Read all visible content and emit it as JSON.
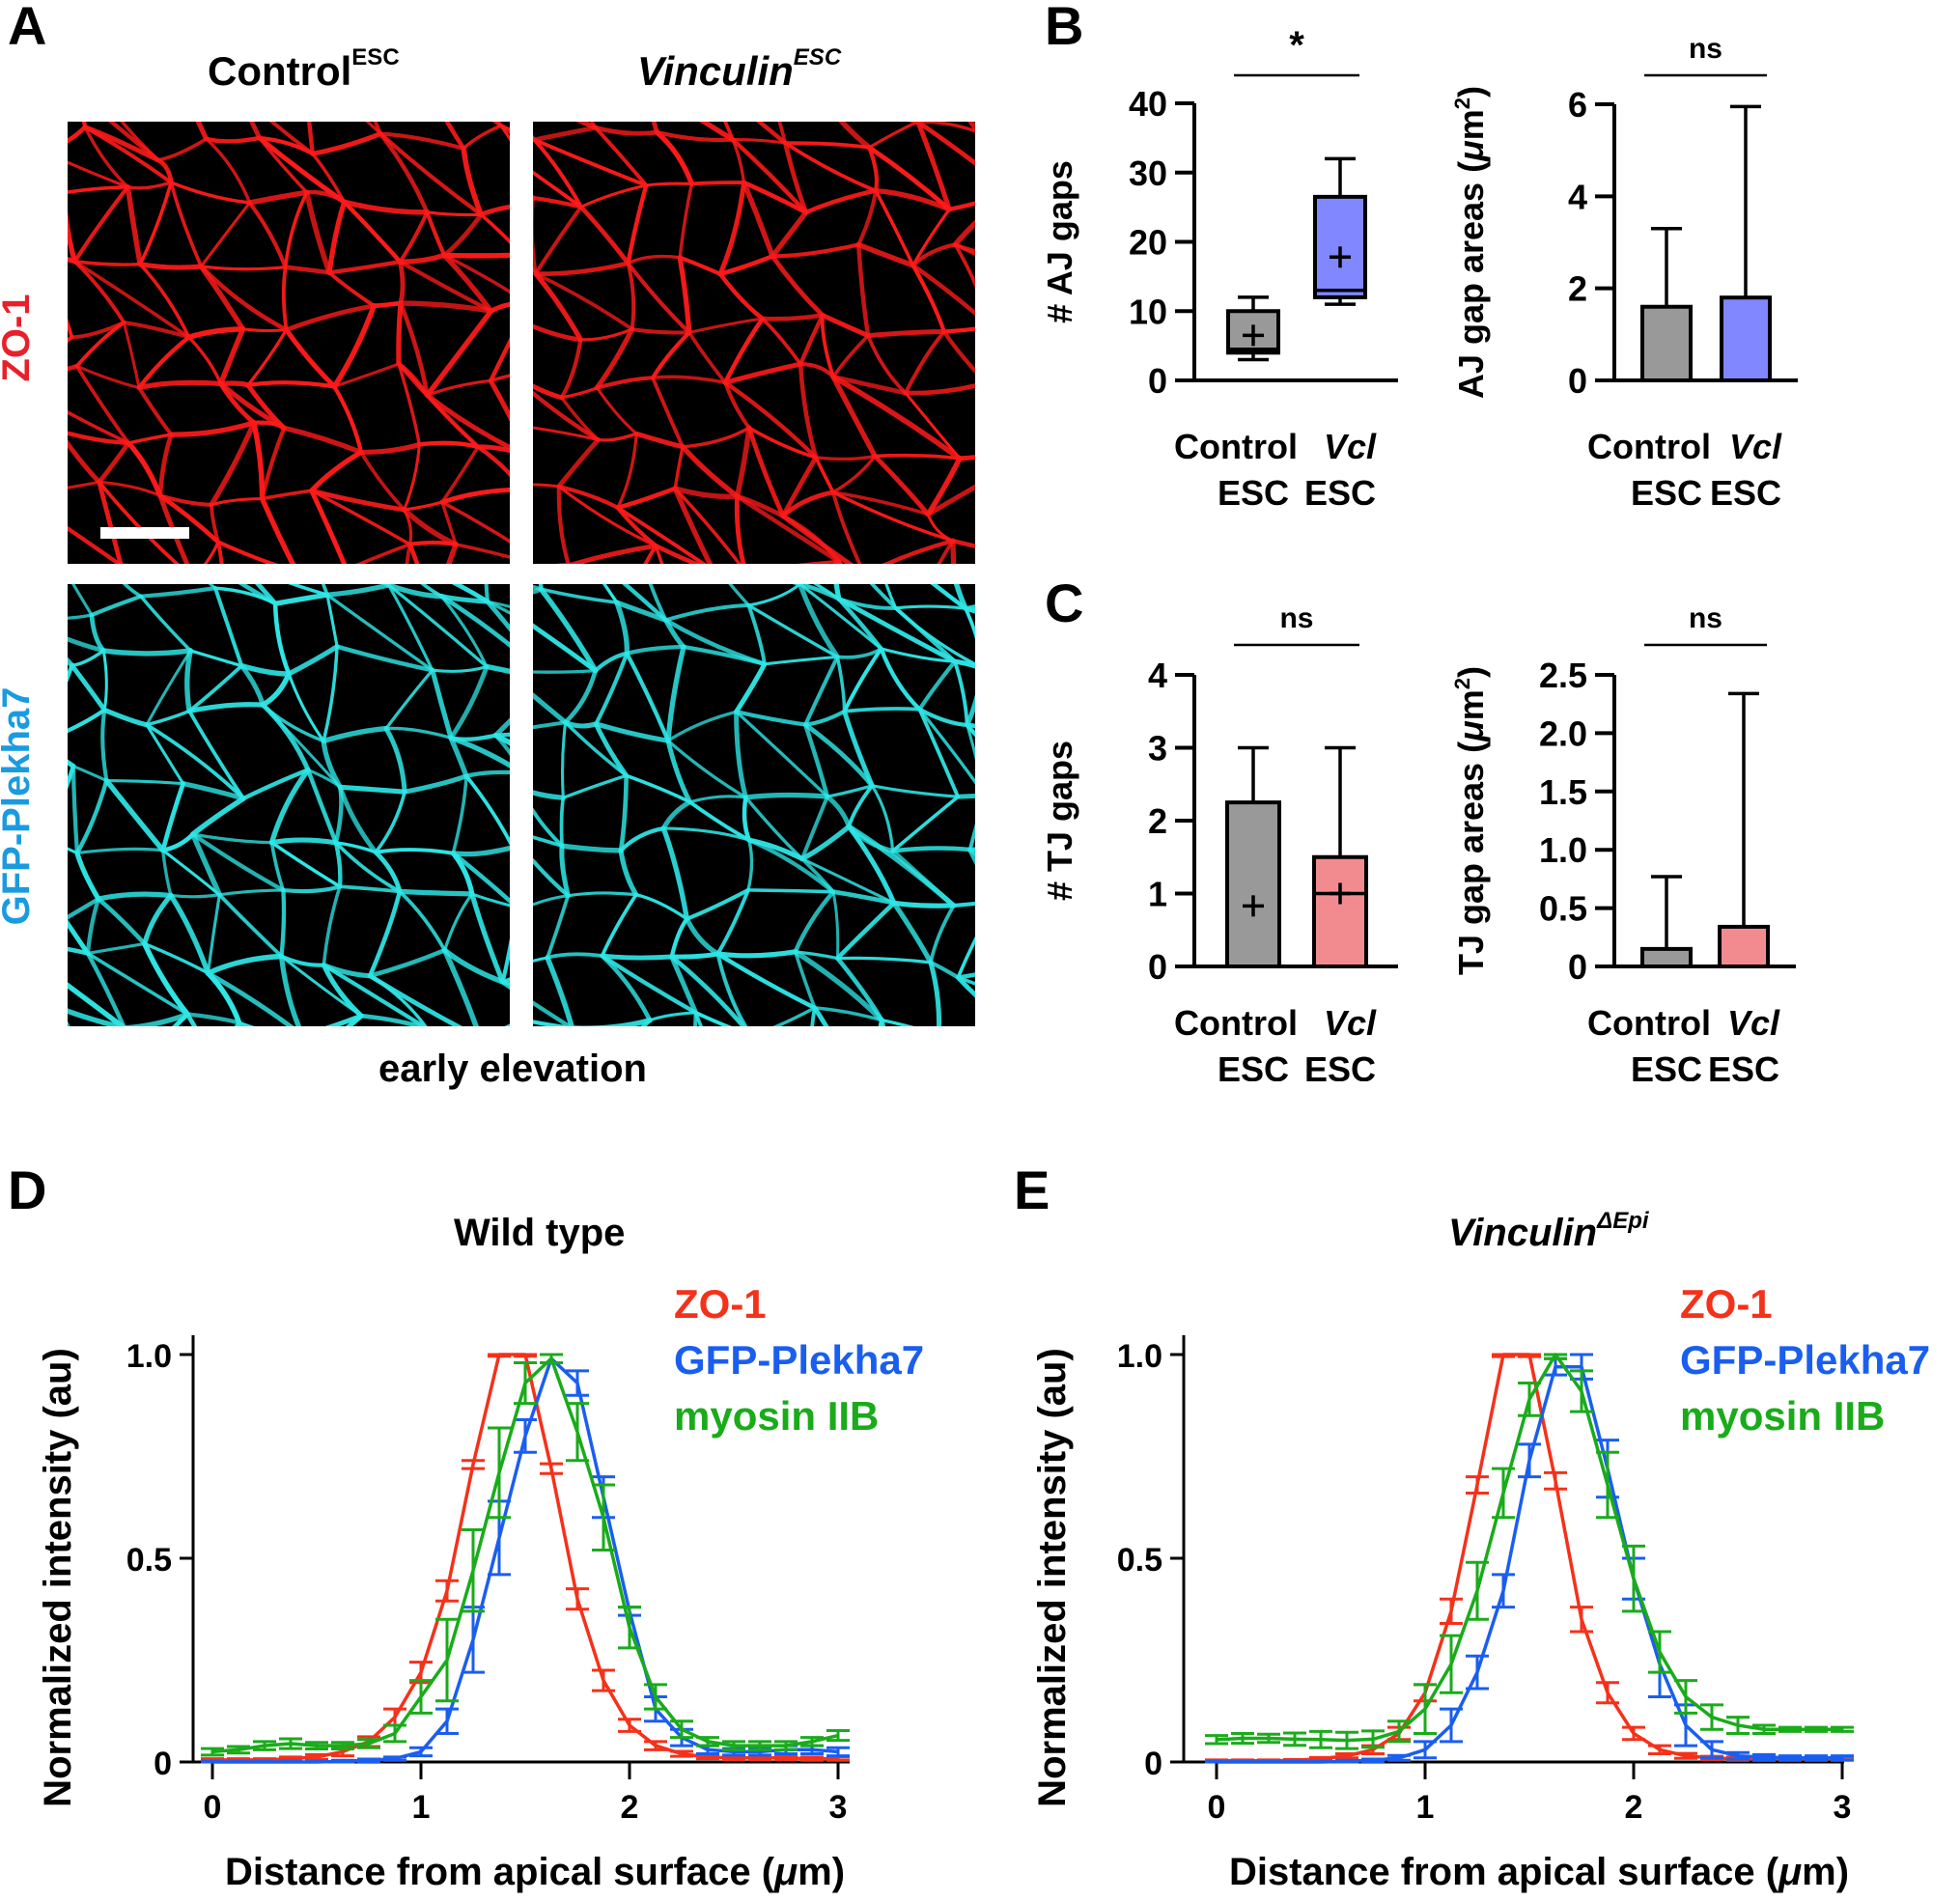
{
  "panels": {
    "A": {
      "letter": "A",
      "col_headings": [
        {
          "main": "Control",
          "sup": "ESC",
          "italic": false
        },
        {
          "main": "Vinculin",
          "sup": "ESC",
          "italic": true
        }
      ],
      "row_labels": [
        {
          "text": "ZO-1",
          "color": "#e8202a"
        },
        {
          "text": "GFP-Plekha7",
          "color": "#1a9be0"
        }
      ],
      "caption": "early elevation",
      "stain_colors": {
        "zo1": "#ff1a1a",
        "plekha7": "#2ee6e6"
      }
    },
    "B": {
      "letter": "B"
    },
    "C": {
      "letter": "C"
    },
    "D": {
      "letter": "D",
      "title": "Wild type"
    },
    "E": {
      "letter": "E",
      "title_main": "Vinculin",
      "title_sup": "ΔEpi"
    }
  },
  "chart_data": [
    {
      "id": "B-left",
      "type": "box",
      "ylabel": "# AJ gaps",
      "ylim": [
        0,
        40
      ],
      "yticks": [
        0,
        10,
        20,
        30,
        40
      ],
      "categories": [
        {
          "line1": "Control",
          "line2": "ESC",
          "italic": false
        },
        {
          "line1": "Vcl",
          "line2": "ESC",
          "italic": true
        }
      ],
      "significance": "*",
      "boxes": [
        {
          "name": "Control ESC",
          "color": "#999999",
          "min": 3,
          "q1": 4,
          "median": 4.5,
          "q3": 10,
          "max": 12,
          "mean": 6.5
        },
        {
          "name": "Vcl ESC",
          "color": "#8087ff",
          "min": 11,
          "q1": 12,
          "median": 13,
          "q3": 26.5,
          "max": 32,
          "mean": 17.8
        }
      ]
    },
    {
      "id": "B-right",
      "type": "bar",
      "ylabel": "AJ gap areas (μm²)",
      "ylim": [
        0,
        6
      ],
      "yticks": [
        0,
        2,
        4,
        6
      ],
      "categories": [
        {
          "line1": "Control",
          "line2": "ESC",
          "italic": false
        },
        {
          "line1": "Vcl",
          "line2": "ESC",
          "italic": true
        }
      ],
      "significance": "ns",
      "bars": [
        {
          "name": "Control ESC",
          "color": "#999999",
          "value": 1.6,
          "error_upper": 3.3
        },
        {
          "name": "Vcl ESC",
          "color": "#8087ff",
          "value": 1.8,
          "error_upper": 5.95
        }
      ]
    },
    {
      "id": "C-left",
      "type": "box",
      "ylabel": "# TJ gaps",
      "ylim": [
        0,
        4
      ],
      "yticks": [
        0,
        1,
        2,
        3,
        4
      ],
      "categories": [
        {
          "line1": "Control",
          "line2": "ESC",
          "italic": false
        },
        {
          "line1": "Vcl",
          "line2": "ESC",
          "italic": true
        }
      ],
      "significance": "ns",
      "boxes": [
        {
          "name": "Control ESC",
          "color": "#999999",
          "min": 0,
          "q1": 0,
          "median": 0,
          "q3": 2.25,
          "max": 3,
          "mean": 0.83
        },
        {
          "name": "Vcl ESC",
          "color": "#f28b8f",
          "min": 0,
          "q1": 0,
          "median": 1,
          "q3": 1.5,
          "max": 3,
          "mean": 1.0
        }
      ]
    },
    {
      "id": "C-right",
      "type": "bar",
      "ylabel": "TJ gap areas (μm²)",
      "ylim": [
        0,
        2.5
      ],
      "yticks": [
        "0",
        "0.5",
        "1.0",
        "1.5",
        "2.0",
        "2.5"
      ],
      "categories": [
        {
          "line1": "Control",
          "line2": "ESC",
          "italic": false
        },
        {
          "line1": "Vcl",
          "line2": "ESC",
          "italic": true
        }
      ],
      "significance": "ns",
      "bars": [
        {
          "name": "Control ESC",
          "color": "#999999",
          "value": 0.15,
          "error_upper": 0.77
        },
        {
          "name": "Vcl ESC",
          "color": "#f28b8f",
          "value": 0.34,
          "error_upper": 2.34
        }
      ]
    },
    {
      "id": "D",
      "type": "line",
      "title": "Wild type",
      "xlabel": "Distance from apical surface (μm)",
      "ylabel": "Normalized intensity (au)",
      "xlim": [
        0,
        3
      ],
      "ylim": [
        0,
        1
      ],
      "xticks": [
        "0",
        "1",
        "2",
        "3"
      ],
      "yticks": [
        "0",
        "0.5",
        "1.0"
      ],
      "legend": "top-right",
      "x": [
        0,
        0.125,
        0.25,
        0.375,
        0.5,
        0.625,
        0.75,
        0.875,
        1.0,
        1.125,
        1.25,
        1.375,
        1.5,
        1.625,
        1.75,
        1.875,
        2.0,
        2.125,
        2.25,
        2.375,
        2.5,
        2.625,
        2.75,
        2.875,
        3.0
      ],
      "series": [
        {
          "name": "ZO-1",
          "color": "#f5311a",
          "values": [
            0.005,
            0.005,
            0.005,
            0.008,
            0.012,
            0.025,
            0.05,
            0.11,
            0.22,
            0.42,
            0.73,
            1.0,
            1.0,
            0.72,
            0.4,
            0.2,
            0.09,
            0.04,
            0.02,
            0.012,
            0.01,
            0.01,
            0.01,
            0.008,
            0.008
          ],
          "err": [
            0.003,
            0.003,
            0.003,
            0.004,
            0.006,
            0.01,
            0.012,
            0.02,
            0.025,
            0.025,
            0.01,
            0.004,
            0.004,
            0.012,
            0.025,
            0.025,
            0.015,
            0.01,
            0.006,
            0.004,
            0.004,
            0.004,
            0.004,
            0.004,
            0.004
          ]
        },
        {
          "name": "GFP-Plekha7",
          "color": "#1a5ef0",
          "values": [
            0.0,
            0.0,
            0.0,
            0.0,
            0.0,
            0.002,
            0.004,
            0.008,
            0.025,
            0.1,
            0.3,
            0.55,
            0.8,
            0.99,
            0.93,
            0.65,
            0.37,
            0.13,
            0.06,
            0.03,
            0.025,
            0.025,
            0.03,
            0.03,
            0.025
          ],
          "err": [
            0.002,
            0.002,
            0.002,
            0.002,
            0.002,
            0.002,
            0.003,
            0.004,
            0.01,
            0.03,
            0.08,
            0.09,
            0.04,
            0.01,
            0.03,
            0.05,
            0.01,
            0.03,
            0.02,
            0.01,
            0.008,
            0.008,
            0.01,
            0.01,
            0.01
          ]
        },
        {
          "name": "myosin IIB",
          "color": "#1aab1a",
          "values": [
            0.025,
            0.03,
            0.04,
            0.045,
            0.04,
            0.04,
            0.045,
            0.07,
            0.16,
            0.25,
            0.47,
            0.71,
            0.93,
            0.99,
            0.81,
            0.6,
            0.33,
            0.16,
            0.08,
            0.05,
            0.04,
            0.04,
            0.04,
            0.05,
            0.065
          ],
          "err": [
            0.008,
            0.008,
            0.01,
            0.012,
            0.008,
            0.008,
            0.01,
            0.02,
            0.04,
            0.1,
            0.1,
            0.11,
            0.05,
            0.01,
            0.07,
            0.08,
            0.05,
            0.03,
            0.02,
            0.01,
            0.01,
            0.01,
            0.01,
            0.01,
            0.012
          ]
        }
      ]
    },
    {
      "id": "E",
      "type": "line",
      "title": "Vinculin ΔEpi",
      "xlabel": "Distance from apical surface (μm)",
      "ylabel": "Normalized intensity (au)",
      "xlim": [
        0,
        3
      ],
      "ylim": [
        0,
        1
      ],
      "xticks": [
        "0",
        "1",
        "2",
        "3"
      ],
      "yticks": [
        "0",
        "0.5",
        "1.0"
      ],
      "legend": "top-right",
      "x": [
        0,
        0.125,
        0.25,
        0.375,
        0.5,
        0.625,
        0.75,
        0.875,
        1.0,
        1.125,
        1.25,
        1.375,
        1.5,
        1.625,
        1.75,
        1.875,
        2.0,
        2.125,
        2.25,
        2.375,
        2.5,
        2.625,
        2.75,
        2.875,
        3.0
      ],
      "series": [
        {
          "name": "ZO-1",
          "color": "#f5311a",
          "values": [
            0.003,
            0.003,
            0.003,
            0.004,
            0.008,
            0.015,
            0.03,
            0.07,
            0.17,
            0.37,
            0.68,
            1.0,
            1.0,
            0.69,
            0.35,
            0.17,
            0.07,
            0.03,
            0.015,
            0.01,
            0.008,
            0.008,
            0.008,
            0.008,
            0.008
          ],
          "err": [
            0.002,
            0.002,
            0.002,
            0.002,
            0.003,
            0.005,
            0.01,
            0.015,
            0.02,
            0.03,
            0.02,
            0.005,
            0.005,
            0.02,
            0.03,
            0.025,
            0.015,
            0.01,
            0.006,
            0.004,
            0.004,
            0.004,
            0.004,
            0.004,
            0.004
          ]
        },
        {
          "name": "GFP-Plekha7",
          "color": "#1a5ef0",
          "values": [
            0.0,
            0.0,
            0.0,
            0.0,
            0.0,
            0.002,
            0.004,
            0.01,
            0.03,
            0.09,
            0.22,
            0.42,
            0.74,
            0.97,
            0.97,
            0.72,
            0.45,
            0.24,
            0.09,
            0.03,
            0.015,
            0.012,
            0.01,
            0.01,
            0.01
          ],
          "err": [
            0.002,
            0.002,
            0.002,
            0.002,
            0.002,
            0.002,
            0.003,
            0.006,
            0.02,
            0.04,
            0.04,
            0.04,
            0.04,
            0.02,
            0.03,
            0.07,
            0.05,
            0.08,
            0.05,
            0.02,
            0.008,
            0.006,
            0.005,
            0.005,
            0.005
          ]
        },
        {
          "name": "myosin IIB",
          "color": "#1aab1a",
          "values": [
            0.055,
            0.058,
            0.058,
            0.056,
            0.055,
            0.053,
            0.056,
            0.075,
            0.13,
            0.24,
            0.42,
            0.66,
            0.89,
            1.0,
            0.91,
            0.68,
            0.45,
            0.27,
            0.16,
            0.11,
            0.09,
            0.08,
            0.08,
            0.08,
            0.08
          ],
          "err": [
            0.01,
            0.012,
            0.01,
            0.015,
            0.02,
            0.02,
            0.02,
            0.025,
            0.06,
            0.07,
            0.07,
            0.06,
            0.04,
            0.01,
            0.05,
            0.08,
            0.08,
            0.05,
            0.04,
            0.03,
            0.02,
            0.01,
            0.005,
            0.005,
            0.005
          ]
        }
      ]
    }
  ]
}
